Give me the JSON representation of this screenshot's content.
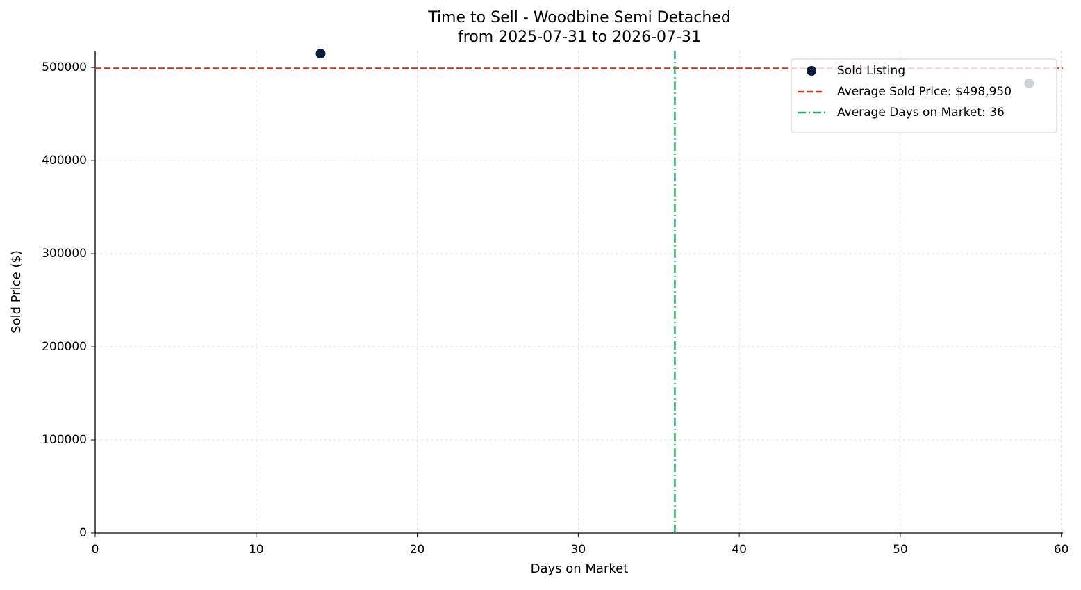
{
  "chart_data": {
    "type": "scatter",
    "title": "Time to Sell - Woodbine Semi Detached",
    "subtitle": "from 2025-07-31 to 2026-07-31",
    "xlabel": "Days on Market",
    "ylabel": "Sold Price ($)",
    "series": [
      {
        "name": "Sold Listing",
        "color": "#0b1f3f",
        "x": [
          14,
          58
        ],
        "values": [
          514900,
          483000
        ]
      }
    ],
    "hlines": [
      {
        "name": "Average Sold Price: $498,950",
        "value": 498950,
        "color": "#c0392b",
        "style": "dashed"
      }
    ],
    "vlines": [
      {
        "name": "Average Days on Market: 36",
        "value": 36,
        "color": "#27ae60",
        "style": "dashdot"
      }
    ],
    "xlim": [
      0,
      60.1
    ],
    "ylim": [
      0,
      518000
    ],
    "xticks": [
      0,
      10,
      20,
      30,
      40,
      50,
      60
    ],
    "yticks": [
      0,
      100000,
      200000,
      300000,
      400000,
      500000
    ],
    "grid": true,
    "legend": "upper right"
  }
}
